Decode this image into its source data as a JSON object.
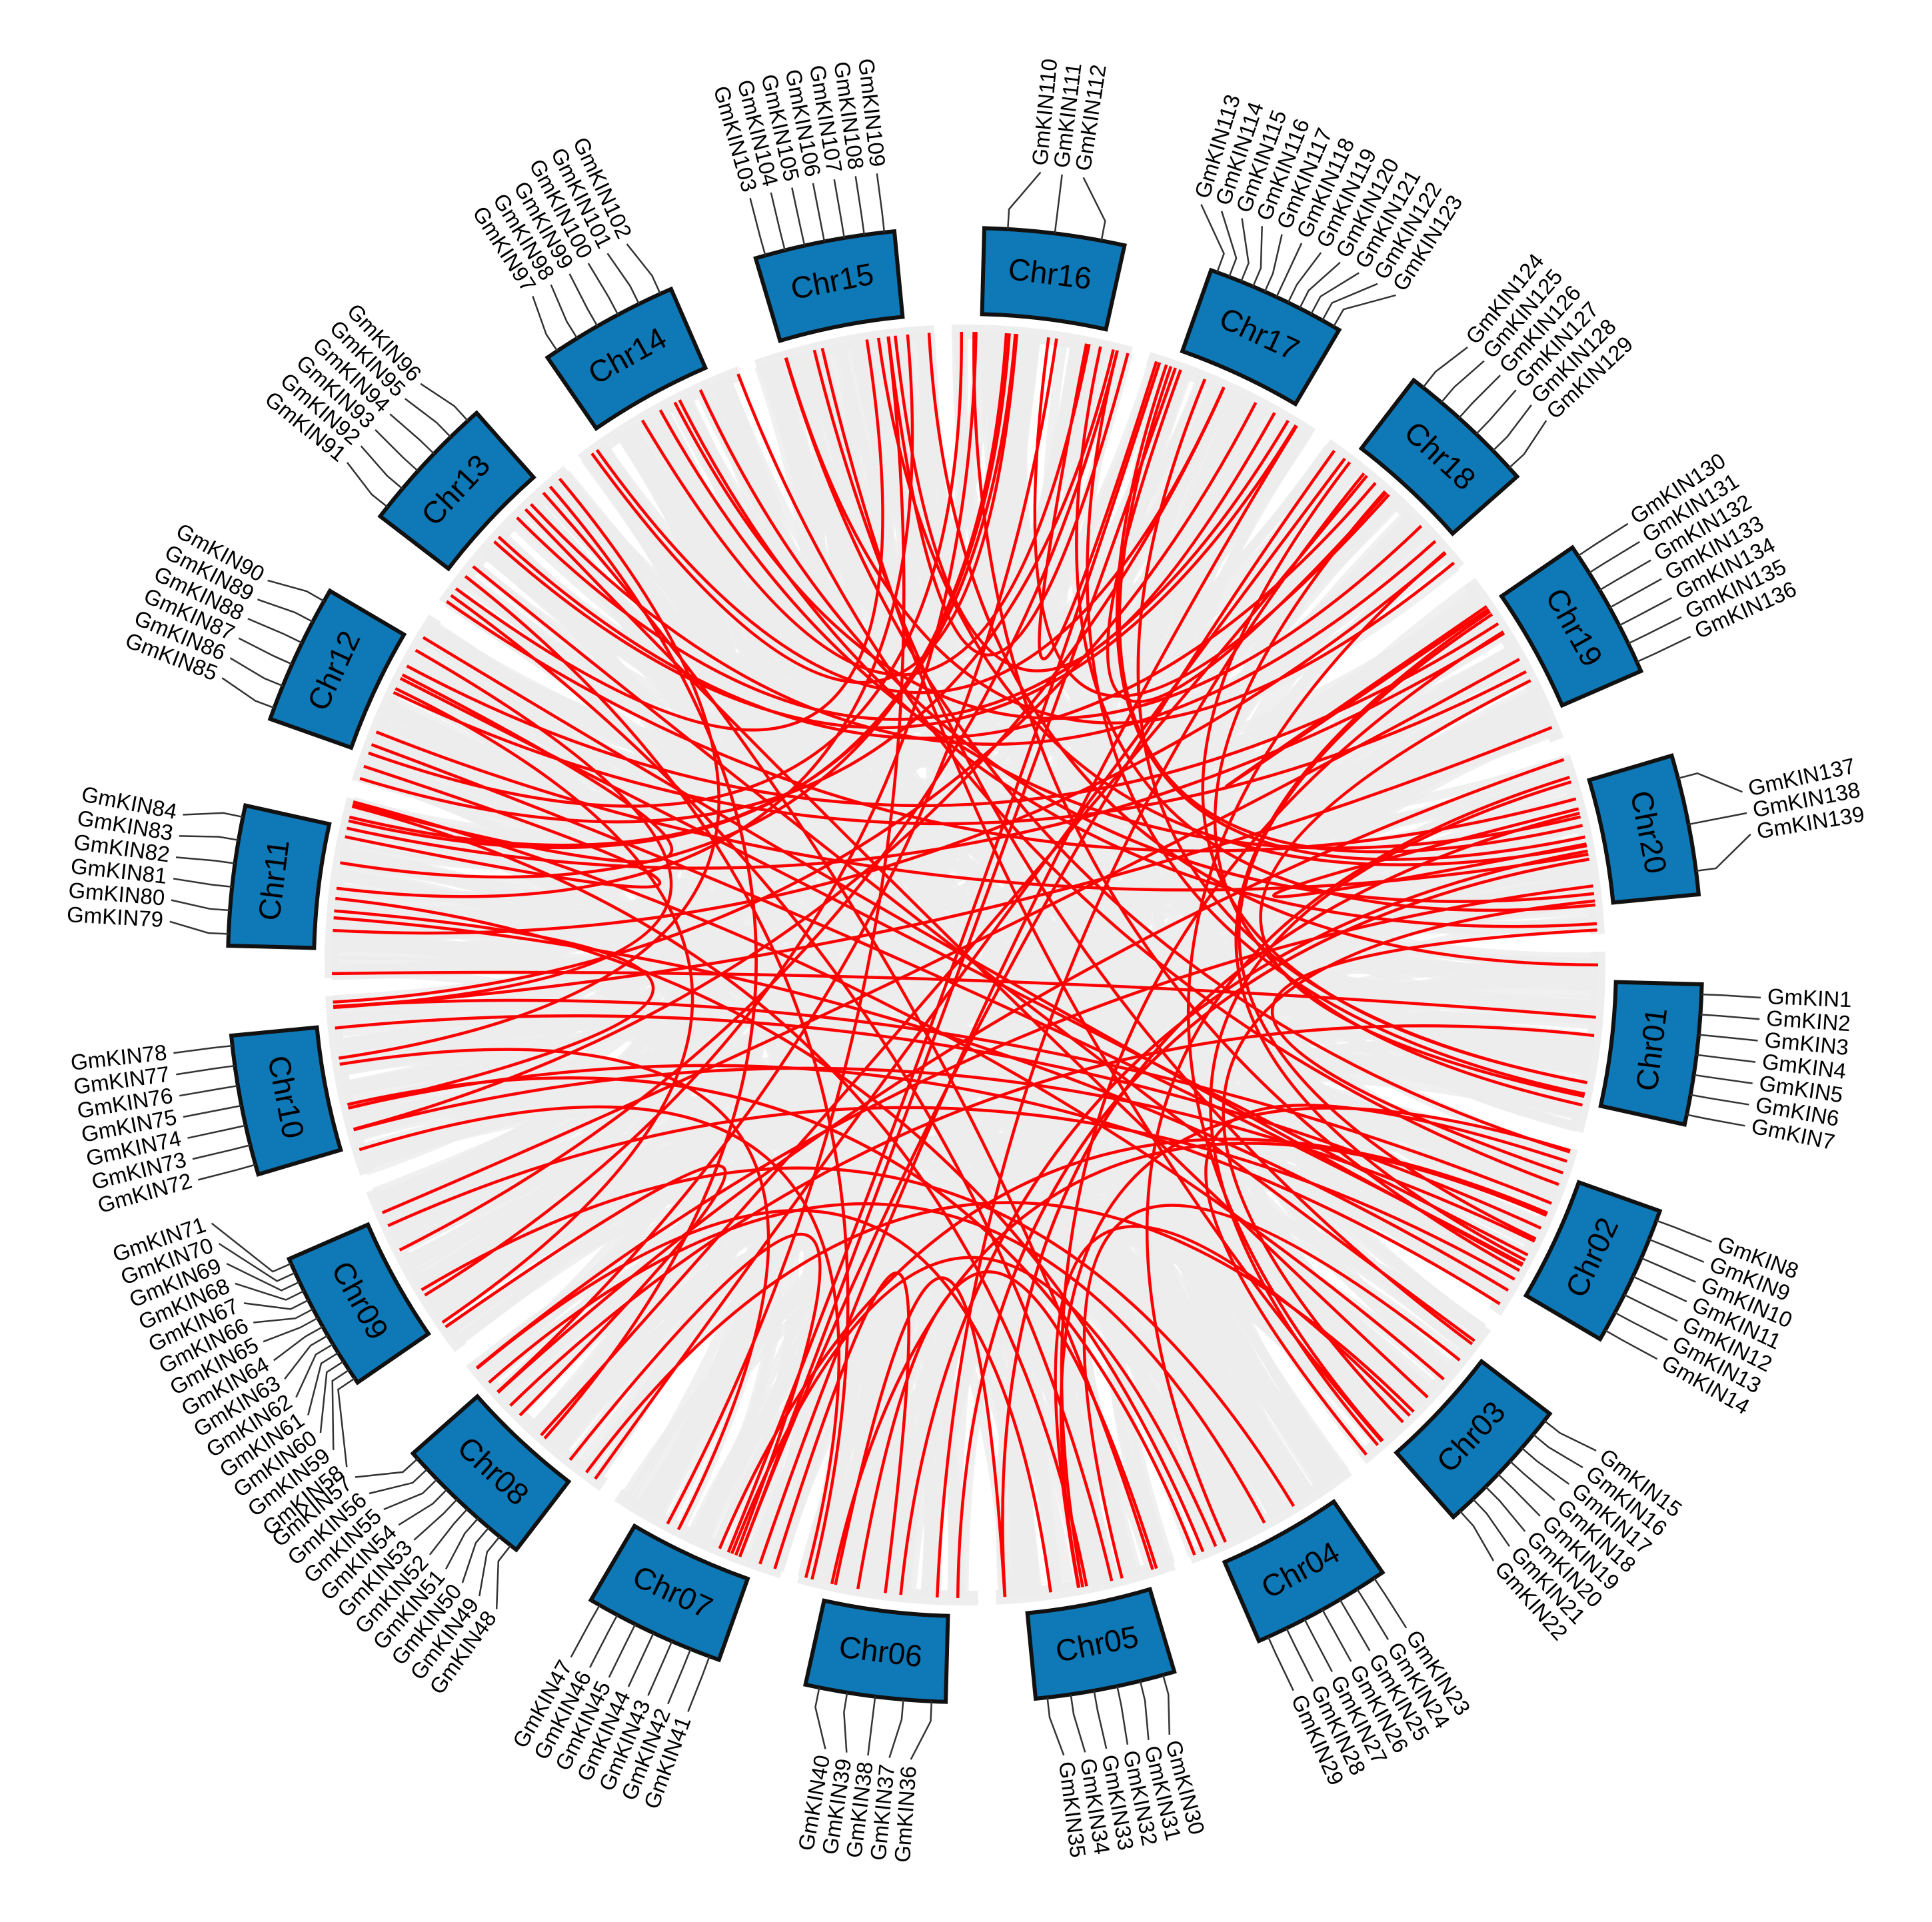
{
  "chromosomes": [
    {
      "label": "Chr01",
      "genes": [
        "GmKIN1",
        "GmKIN2",
        "GmKIN3",
        "GmKIN4",
        "GmKIN5",
        "GmKIN6",
        "GmKIN7"
      ]
    },
    {
      "label": "Chr02",
      "genes": [
        "GmKIN8",
        "GmKIN9",
        "GmKIN10",
        "GmKIN11",
        "GmKIN12",
        "GmKIN13",
        "GmKIN14"
      ]
    },
    {
      "label": "Chr03",
      "genes": [
        "GmKIN15",
        "GmKIN16",
        "GmKIN17",
        "GmKIN18",
        "GmKIN19",
        "GmKIN20",
        "GmKIN21",
        "GmKIN22"
      ]
    },
    {
      "label": "Chr04",
      "genes": [
        "GmKIN23",
        "GmKIN24",
        "GmKIN25",
        "GmKIN26",
        "GmKIN27",
        "GmKIN28",
        "GmKIN29"
      ]
    },
    {
      "label": "Chr05",
      "genes": [
        "GmKIN30",
        "GmKIN31",
        "GmKIN32",
        "GmKIN33",
        "GmKIN34",
        "GmKIN35"
      ]
    },
    {
      "label": "Chr06",
      "genes": [
        "GmKIN36",
        "GmKIN37",
        "GmKIN38",
        "GmKIN39",
        "GmKIN40"
      ]
    },
    {
      "label": "Chr07",
      "genes": [
        "GmKIN41",
        "GmKIN42",
        "GmKIN43",
        "GmKIN44",
        "GmKIN45",
        "GmKIN46",
        "GmKIN47"
      ]
    },
    {
      "label": "Chr08",
      "genes": [
        "GmKIN48",
        "GmKIN49",
        "GmKIN50",
        "GmKIN51",
        "GmKIN52",
        "GmKIN53",
        "GmKIN54",
        "GmKIN55",
        "GmKIN56",
        "GmKIN57"
      ]
    },
    {
      "label": "Chr09",
      "genes": [
        "GmKIN58",
        "GmKIN59",
        "GmKIN60",
        "GmKIN61",
        "GmKIN62",
        "GmKIN63",
        "GmKIN64",
        "GmKIN65",
        "GmKIN66",
        "GmKIN67",
        "GmKIN68",
        "GmKIN69",
        "GmKIN70",
        "GmKIN71"
      ]
    },
    {
      "label": "Chr10",
      "genes": [
        "GmKIN72",
        "GmKIN73",
        "GmKIN74",
        "GmKIN75",
        "GmKIN76",
        "GmKIN77",
        "GmKIN78"
      ]
    },
    {
      "label": "Chr11",
      "genes": [
        "GmKIN79",
        "GmKIN80",
        "GmKIN81",
        "GmKIN82",
        "GmKIN83",
        "GmKIN84"
      ]
    },
    {
      "label": "Chr12",
      "genes": [
        "GmKIN85",
        "GmKIN86",
        "GmKIN87",
        "GmKIN88",
        "GmKIN89",
        "GmKIN90"
      ]
    },
    {
      "label": "Chr13",
      "genes": [
        "GmKIN91",
        "GmKIN92",
        "GmKIN93",
        "GmKIN94",
        "GmKIN95",
        "GmKIN96"
      ]
    },
    {
      "label": "Chr14",
      "genes": [
        "GmKIN97",
        "GmKIN98",
        "GmKIN99",
        "GmKIN100",
        "GmKIN101",
        "GmKIN102"
      ]
    },
    {
      "label": "Chr15",
      "genes": [
        "GmKIN103",
        "GmKIN104",
        "GmKIN105",
        "GmKIN106",
        "GmKIN107",
        "GmKIN108",
        "GmKIN109"
      ]
    },
    {
      "label": "Chr16",
      "genes": [
        "GmKIN110",
        "GmKIN111",
        "GmKIN112"
      ]
    },
    {
      "label": "Chr17",
      "genes": [
        "GmKIN113",
        "GmKIN114",
        "GmKIN115",
        "GmKIN116",
        "GmKIN117",
        "GmKIN118",
        "GmKIN119",
        "GmKIN120",
        "GmKIN121",
        "GmKIN122",
        "GmKIN123"
      ]
    },
    {
      "label": "Chr18",
      "genes": [
        "GmKIN124",
        "GmKIN125",
        "GmKIN126",
        "GmKIN127",
        "GmKIN128",
        "GmKIN129"
      ]
    },
    {
      "label": "Chr19",
      "genes": [
        "GmKIN130",
        "GmKIN131",
        "GmKIN132",
        "GmKIN133",
        "GmKIN134",
        "GmKIN135",
        "GmKIN136"
      ]
    },
    {
      "label": "Chr20",
      "genes": [
        "GmKIN137",
        "GmKIN138",
        "GmKIN139"
      ]
    }
  ]
}
